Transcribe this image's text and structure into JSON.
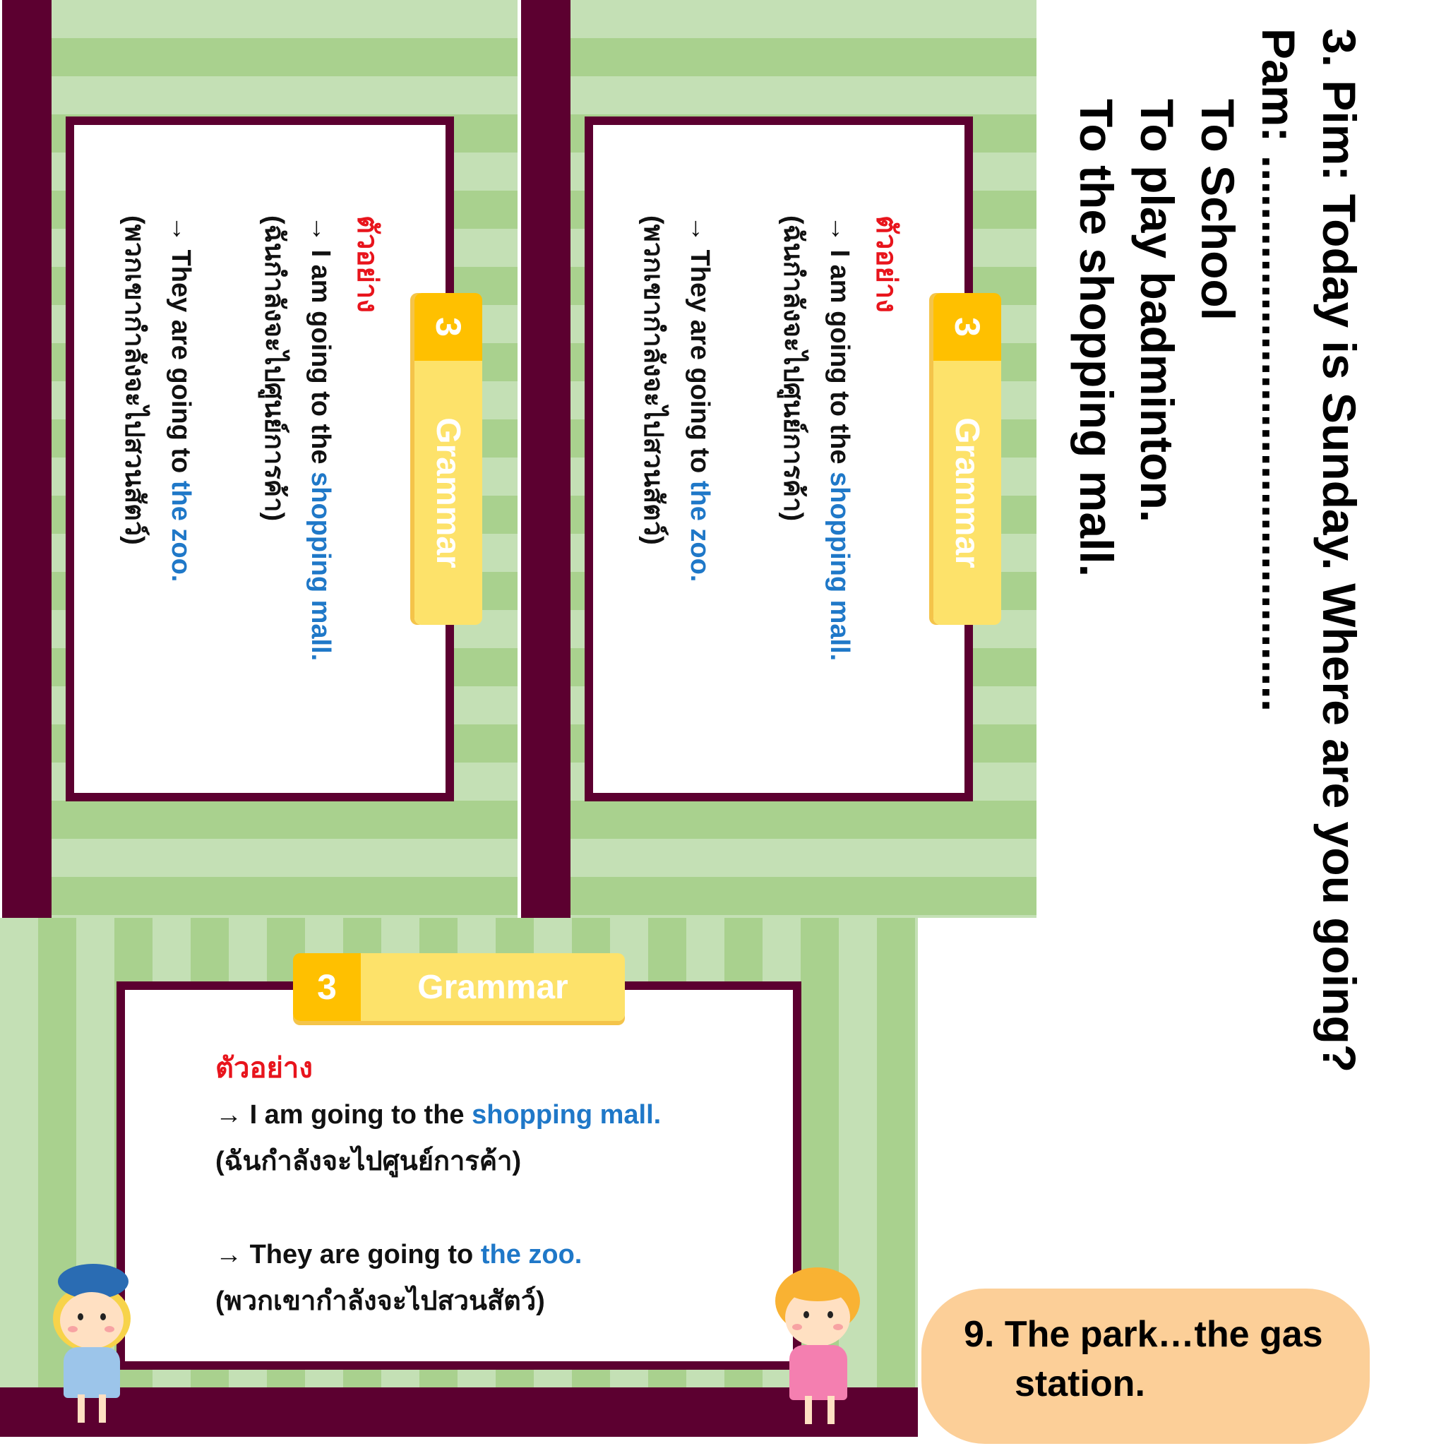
{
  "slide": {
    "badge_number": "3",
    "badge_label": "Grammar",
    "example_heading": "ตัวอย่าง",
    "line1_arrow": "→",
    "line1_prefix": "I am going to the",
    "line1_highlight": "shopping mall.",
    "line1_translation": "(ฉันกำลังจะไปศูนย์การค้า)",
    "line2_arrow": "→",
    "line2_prefix": "They are going to",
    "line2_highlight": "the zoo.",
    "line2_translation": "(พวกเขากำลังจะไปสวนสัตว์)"
  },
  "question": {
    "line1": "3. Pim: Today is Sunday. Where are you going?",
    "line2": "Pam: ...........................................",
    "option1": "To School",
    "option2": "To play badminton.",
    "option3": "To the shopping mall."
  },
  "answer": {
    "line1": "9. The park…the gas",
    "line2": "station."
  },
  "colors": {
    "stripe_light": "#c4e0b5",
    "stripe_dark": "#a9d18e",
    "frame": "#5c0030",
    "badge_number_bg": "#ffc000",
    "badge_label_bg": "#fde26a",
    "example_red": "#e8141c",
    "highlight_blue": "#1f78c8",
    "answer_pill": "#fccf98"
  }
}
